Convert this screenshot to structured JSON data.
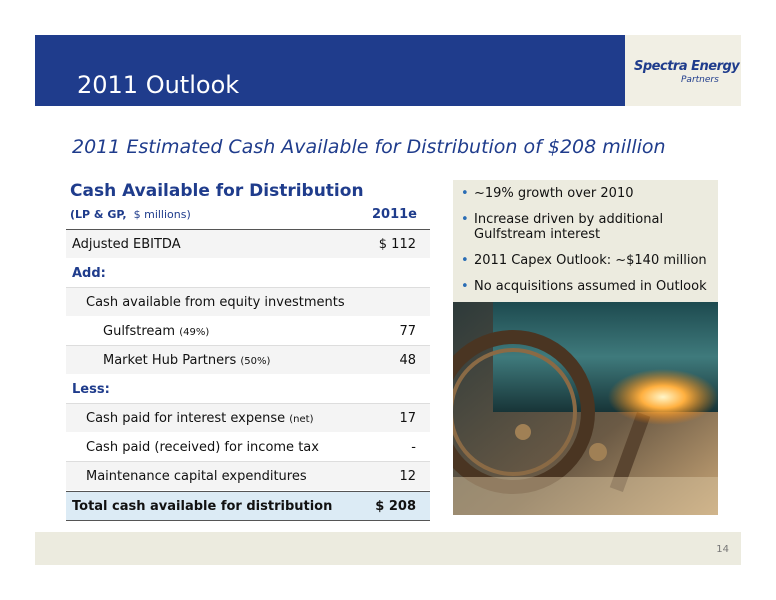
{
  "header": {
    "title": "2011 Outlook",
    "logo": {
      "name": "Spectra Energy",
      "sub": "Partners"
    }
  },
  "subtitle": "2011 Estimated Cash Available for Distribution of $208 million",
  "table": {
    "title": "Cash Available for Distribution",
    "units_bold": "(LP & GP,",
    "units": "$ millions)",
    "column": "2011e",
    "rows": [
      {
        "label": "Adjusted EBITDA",
        "value": "$ 112"
      },
      {
        "label": "Add:"
      },
      {
        "label": "Cash available from equity investments"
      },
      {
        "label": "Gulfstream",
        "note": "(49%)",
        "value": "77"
      },
      {
        "label": "Market Hub Partners",
        "note": "(50%)",
        "value": "48"
      },
      {
        "label": "Less:"
      },
      {
        "label": "Cash paid for interest expense",
        "note": "(net)",
        "value": "17"
      },
      {
        "label": "Cash paid (received) for income tax",
        "value": "-"
      },
      {
        "label": "Maintenance capital expenditures",
        "value": "12"
      },
      {
        "label": "Total cash available for distribution",
        "value": "$ 208"
      }
    ]
  },
  "bullets": [
    "~19% growth over 2010",
    "Increase driven by additional Gulfstream interest",
    "2011 Capex Outlook:  ~$140 million",
    "No acquisitions assumed in Outlook"
  ],
  "page": "14"
}
